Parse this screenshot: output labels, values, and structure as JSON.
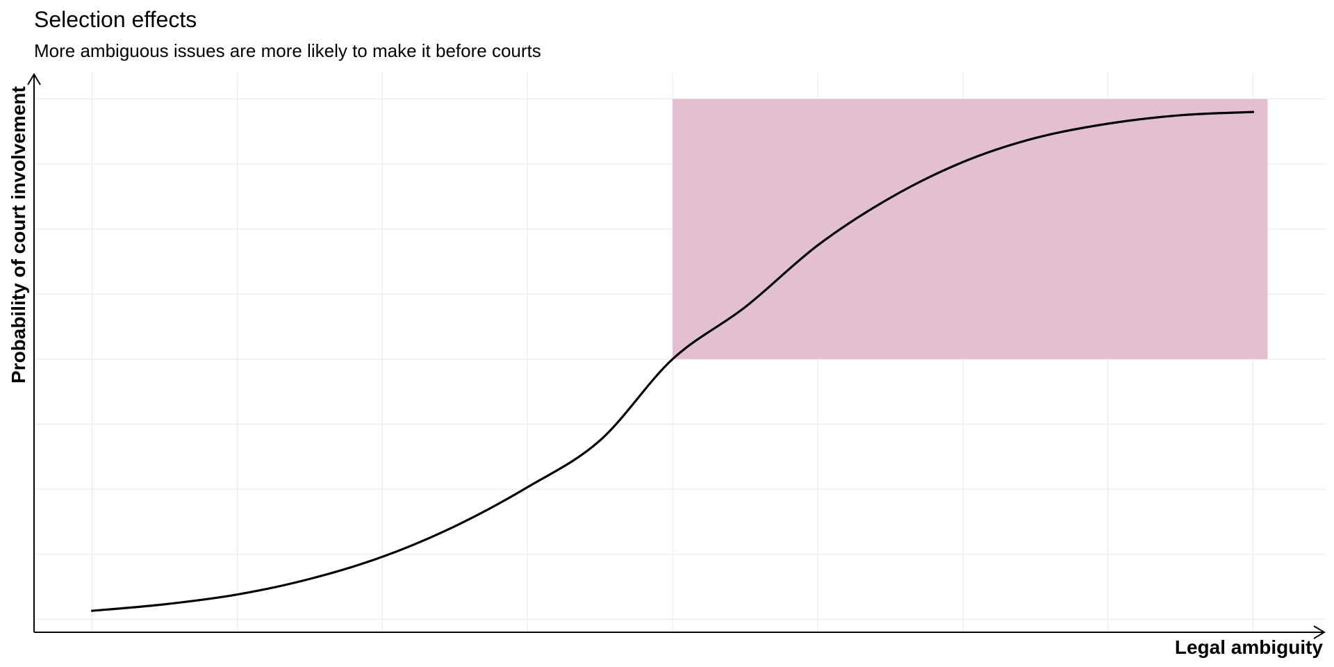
{
  "chart_data": {
    "type": "line",
    "title": "Selection effects",
    "subtitle": "More ambiguous issues are more likely to make it before courts",
    "xlabel": "Legal ambiguity",
    "ylabel": "Probability of court involvement",
    "xlim": [
      -0.2,
      4.25
    ],
    "ylim": [
      -0.02,
      0.84
    ],
    "grid": true,
    "tick_labels_shown": false,
    "curve": {
      "x": [
        0,
        0.25,
        0.5,
        0.75,
        1.0,
        1.25,
        1.5,
        1.75,
        2.0,
        2.25,
        2.5,
        2.75,
        3.0,
        3.25,
        3.5,
        3.75,
        4.0
      ],
      "y": [
        0.013,
        0.023,
        0.038,
        0.062,
        0.096,
        0.143,
        0.203,
        0.275,
        0.4,
        0.48,
        0.575,
        0.648,
        0.703,
        0.74,
        0.762,
        0.775,
        0.78
      ]
    },
    "highlight_region": {
      "x": [
        2.0,
        4.05
      ],
      "y": [
        0.4,
        0.8
      ],
      "color": "#e2c0d1"
    },
    "colors": {
      "line": "#000000",
      "grid": "#ebebeb",
      "axis": "#000000"
    }
  }
}
